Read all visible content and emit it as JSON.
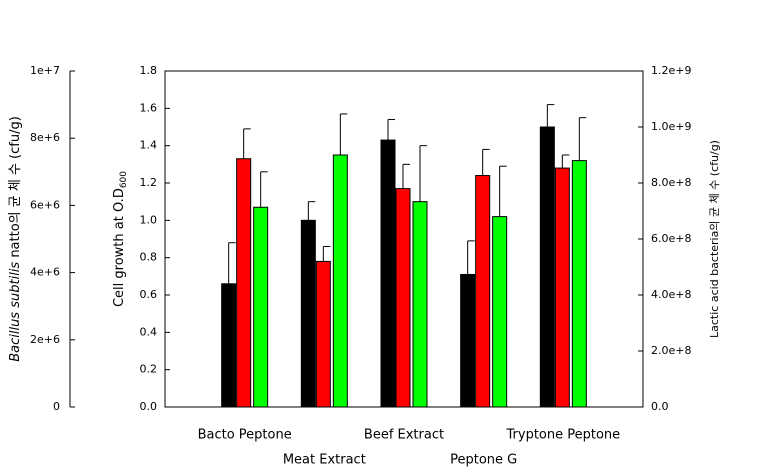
{
  "chart_data": {
    "type": "bar",
    "categories": [
      "Bacto Peptone",
      "Meat Extract",
      "Beef Extract",
      "Peptone G",
      "Tryptone Peptone"
    ],
    "series": [
      {
        "color": "#000000",
        "values": [
          0.66,
          1.0,
          1.43,
          0.71,
          1.5
        ],
        "errors": [
          0.22,
          0.1,
          0.11,
          0.18,
          0.12
        ]
      },
      {
        "color": "#ff0000",
        "values": [
          1.33,
          0.78,
          1.17,
          1.24,
          1.28
        ],
        "errors": [
          0.16,
          0.08,
          0.13,
          0.14,
          0.07
        ]
      },
      {
        "color": "#00ff00",
        "values": [
          1.07,
          1.35,
          1.1,
          1.02,
          1.32
        ],
        "errors": [
          0.19,
          0.22,
          0.3,
          0.27,
          0.23
        ]
      }
    ],
    "ylabel": "Cell growth at O.D",
    "ylabel_sub": "600",
    "ylim": [
      0,
      1.8
    ],
    "yticks": [
      {
        "value": 0,
        "label": "0.0"
      },
      {
        "value": 0.2,
        "label": "0.2"
      },
      {
        "value": 0.4,
        "label": "0.4"
      },
      {
        "value": 0.6,
        "label": "0.6"
      },
      {
        "value": 0.8,
        "label": "0.8"
      },
      {
        "value": 1.0,
        "label": "1.0"
      },
      {
        "value": 1.2,
        "label": "1.2"
      },
      {
        "value": 1.4,
        "label": "1.4"
      },
      {
        "value": 1.6,
        "label": "1.6"
      },
      {
        "value": 1.8,
        "label": "1.8"
      }
    ],
    "y3label_italic": "Bacillus subtilis",
    "y3label": " natto의  균 체  수  (cfu/g)",
    "y3lim": [
      0,
      10000000
    ],
    "y3ticks": [
      0,
      {
        "value": 2000000,
        "label": "2e+6"
      },
      {
        "value": 4000000,
        "label": "4e+6"
      },
      {
        "value": 6000000,
        "label": "6e+6"
      },
      {
        "value": 8000000,
        "label": "8e+6"
      },
      {
        "value": 10000000,
        "label": "1e+7"
      }
    ],
    "y2label": "Lactic acid bacteria의  균 체  수   (cfu/g)",
    "y2lim": [
      0,
      1200000000
    ],
    "y2ticks": [
      {
        "value": 0,
        "label": "0.0"
      },
      {
        "value": 200000000,
        "label": "2.0e+8"
      },
      {
        "value": 400000000,
        "label": "4.0e+8"
      },
      {
        "value": 600000000,
        "label": "6.0e+8"
      },
      {
        "value": 800000000,
        "label": "8.0e+8"
      },
      {
        "value": 1000000000,
        "label": "1.0e+9"
      },
      {
        "value": 1200000000,
        "label": "1.2e+9"
      }
    ]
  }
}
